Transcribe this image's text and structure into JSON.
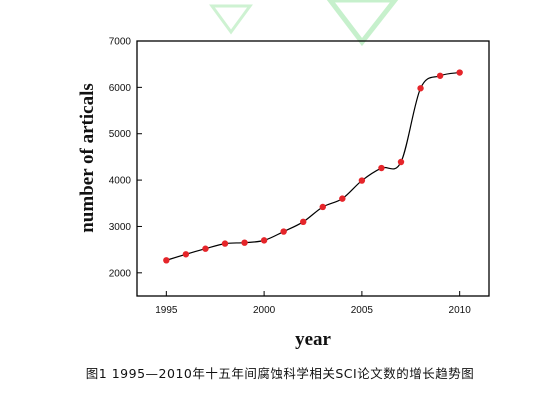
{
  "chart_data": {
    "type": "scatter",
    "xlabel": "year",
    "ylabel": "number of articals",
    "xlim": [
      1993.5,
      2011.5
    ],
    "ylim": [
      1500,
      7000
    ],
    "x_ticks": [
      1995,
      2000,
      2005,
      2010
    ],
    "y_ticks": [
      2000,
      3000,
      4000,
      5000,
      6000,
      7000
    ],
    "grid": false,
    "legend": "none",
    "point_color": "#e5252a",
    "line_color": "#000000",
    "series": [
      {
        "x": [
          1995,
          1996,
          1997,
          1998,
          1999,
          2000,
          2001,
          2002,
          2003,
          2004,
          2005,
          2006,
          2007,
          2008,
          2009,
          2010
        ],
        "y": [
          2270,
          2400,
          2520,
          2630,
          2650,
          2700,
          2890,
          3100,
          3420,
          3600,
          3990,
          4260,
          4390,
          5980,
          6250,
          6320
        ]
      }
    ]
  },
  "caption": "图1 1995—2010年十五年间腐蚀科学相关SCI论文数的增长趋势图"
}
